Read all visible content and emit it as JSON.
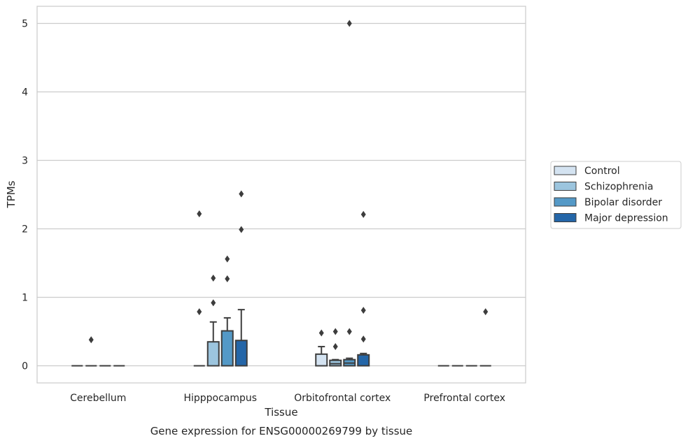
{
  "chart_data": {
    "type": "box",
    "title": "",
    "caption": "Gene expression for ENSG00000269799 by tissue",
    "xlabel": "Tissue",
    "ylabel": "TPMs",
    "ylim": [
      -0.25,
      5.25
    ],
    "yticks": [
      0,
      1,
      2,
      3,
      4,
      5
    ],
    "grid": "horizontal",
    "legend_position": "right",
    "categories": [
      "Cerebellum",
      "Hipppocampus",
      "Orbitofrontal cortex",
      "Prefrontal cortex"
    ],
    "series": [
      {
        "name": "Control",
        "color": "#d4e3f1",
        "boxes": [
          {
            "q1": 0,
            "median": 0,
            "q3": 0,
            "whisker_low": 0,
            "whisker_high": 0,
            "outliers": []
          },
          {
            "q1": 0,
            "median": 0,
            "q3": 0,
            "whisker_low": 0,
            "whisker_high": 0,
            "outliers": [
              0.79,
              2.22
            ]
          },
          {
            "q1": 0,
            "median": 0,
            "q3": 0.17,
            "whisker_low": 0,
            "whisker_high": 0.28,
            "outliers": [
              0.48
            ]
          },
          {
            "q1": 0,
            "median": 0,
            "q3": 0,
            "whisker_low": 0,
            "whisker_high": 0,
            "outliers": []
          }
        ]
      },
      {
        "name": "Schizophrenia",
        "color": "#9cc5de",
        "boxes": [
          {
            "q1": 0,
            "median": 0,
            "q3": 0,
            "whisker_low": 0,
            "whisker_high": 0,
            "outliers": [
              0.38
            ]
          },
          {
            "q1": 0,
            "median": 0,
            "q3": 0.35,
            "whisker_low": 0,
            "whisker_high": 0.64,
            "outliers": [
              0.92,
              1.28
            ]
          },
          {
            "q1": 0,
            "median": 0.03,
            "q3": 0.08,
            "whisker_low": 0,
            "whisker_high": 0.09,
            "outliers": [
              0.28,
              0.5
            ]
          },
          {
            "q1": 0,
            "median": 0,
            "q3": 0,
            "whisker_low": 0,
            "whisker_high": 0,
            "outliers": []
          }
        ]
      },
      {
        "name": "Bipolar disorder",
        "color": "#5499c7",
        "boxes": [
          {
            "q1": 0,
            "median": 0,
            "q3": 0,
            "whisker_low": 0,
            "whisker_high": 0,
            "outliers": []
          },
          {
            "q1": 0,
            "median": 0,
            "q3": 0.51,
            "whisker_low": 0,
            "whisker_high": 0.7,
            "outliers": [
              1.27,
              1.56
            ]
          },
          {
            "q1": 0,
            "median": 0.04,
            "q3": 0.09,
            "whisker_low": 0,
            "whisker_high": 0.11,
            "outliers": [
              0.5,
              5.0
            ]
          },
          {
            "q1": 0,
            "median": 0,
            "q3": 0,
            "whisker_low": 0,
            "whisker_high": 0,
            "outliers": []
          }
        ]
      },
      {
        "name": "Major depression",
        "color": "#2466a8",
        "boxes": [
          {
            "q1": 0,
            "median": 0,
            "q3": 0,
            "whisker_low": 0,
            "whisker_high": 0,
            "outliers": []
          },
          {
            "q1": 0,
            "median": 0,
            "q3": 0.37,
            "whisker_low": 0,
            "whisker_high": 0.82,
            "outliers": [
              1.99,
              2.51
            ]
          },
          {
            "q1": 0,
            "median": 0,
            "q3": 0.16,
            "whisker_low": 0,
            "whisker_high": 0.18,
            "outliers": [
              0.39,
              0.81,
              2.21
            ]
          },
          {
            "q1": 0,
            "median": 0,
            "q3": 0,
            "whisker_low": 0,
            "whisker_high": 0,
            "outliers": [
              0.79
            ]
          }
        ]
      }
    ]
  }
}
